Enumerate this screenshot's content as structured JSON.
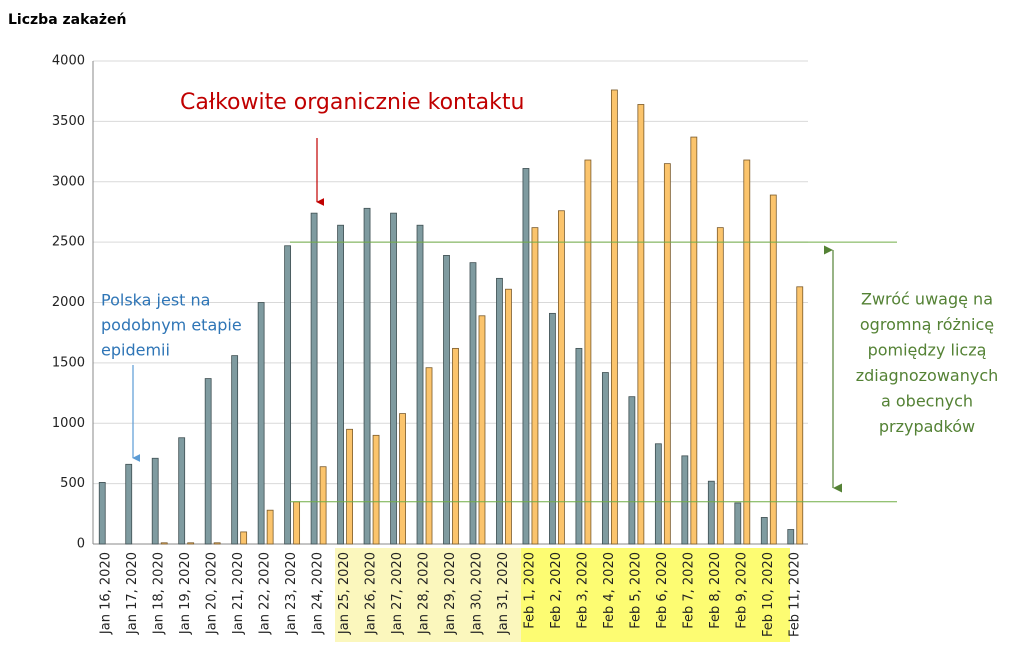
{
  "chart_data": {
    "type": "bar",
    "title": "Liczba zakażeń",
    "categories": [
      "Jan 16, 2020",
      "Jan 17, 2020",
      "Jan 18, 2020",
      "Jan 19, 2020",
      "Jan 20, 2020",
      "Jan 21, 2020",
      "Jan 22, 2020",
      "Jan 23, 2020",
      "Jan 24, 2020",
      "Jan 25, 2020",
      "Jan 26, 2020",
      "Jan 27, 2020",
      "Jan 28, 2020",
      "Jan 29, 2020",
      "Jan 30, 2020",
      "Jan 31, 2020",
      "Feb 1, 2020",
      "Feb 2, 2020",
      "Feb 3, 2020",
      "Feb 4, 2020",
      "Feb 5, 2020",
      "Feb 6, 2020",
      "Feb 7, 2020",
      "Feb 8, 2020",
      "Feb 9, 2020",
      "Feb 10, 2020",
      "Feb 11, 2020"
    ],
    "series": [
      {
        "color": "#7f9ba0",
        "values": [
          510,
          660,
          710,
          880,
          1370,
          1560,
          2000,
          2470,
          2740,
          2640,
          2780,
          2740,
          2640,
          2390,
          2330,
          2200,
          3110,
          1910,
          1620,
          1420,
          1220,
          830,
          730,
          520,
          340,
          220,
          120
        ]
      },
      {
        "color": "#fbc46c",
        "values": [
          0,
          0,
          10,
          10,
          10,
          100,
          280,
          350,
          640,
          950,
          900,
          1080,
          1460,
          1620,
          1890,
          2110,
          2620,
          2760,
          3180,
          3760,
          3640,
          3150,
          3370,
          2620,
          3180,
          2890,
          2130
        ]
      }
    ],
    "ylim": [
      0,
      4000
    ],
    "yticks": [
      0,
      500,
      1000,
      1500,
      2000,
      2500,
      3000,
      3500,
      4000
    ],
    "grid": true,
    "reference_lines": [
      2500,
      350
    ],
    "annotations": {
      "red": [
        "Całkowite organicznie kontaktu"
      ],
      "blue": [
        "Polska jest na",
        "podobnym  etapie",
        "epidemii"
      ],
      "green": [
        "Zwróć uwagę na",
        "ogromną różnicę",
        "pomiędzy liczą",
        "zdiagnozowanych",
        "a obecnych",
        "przypadków"
      ]
    }
  }
}
